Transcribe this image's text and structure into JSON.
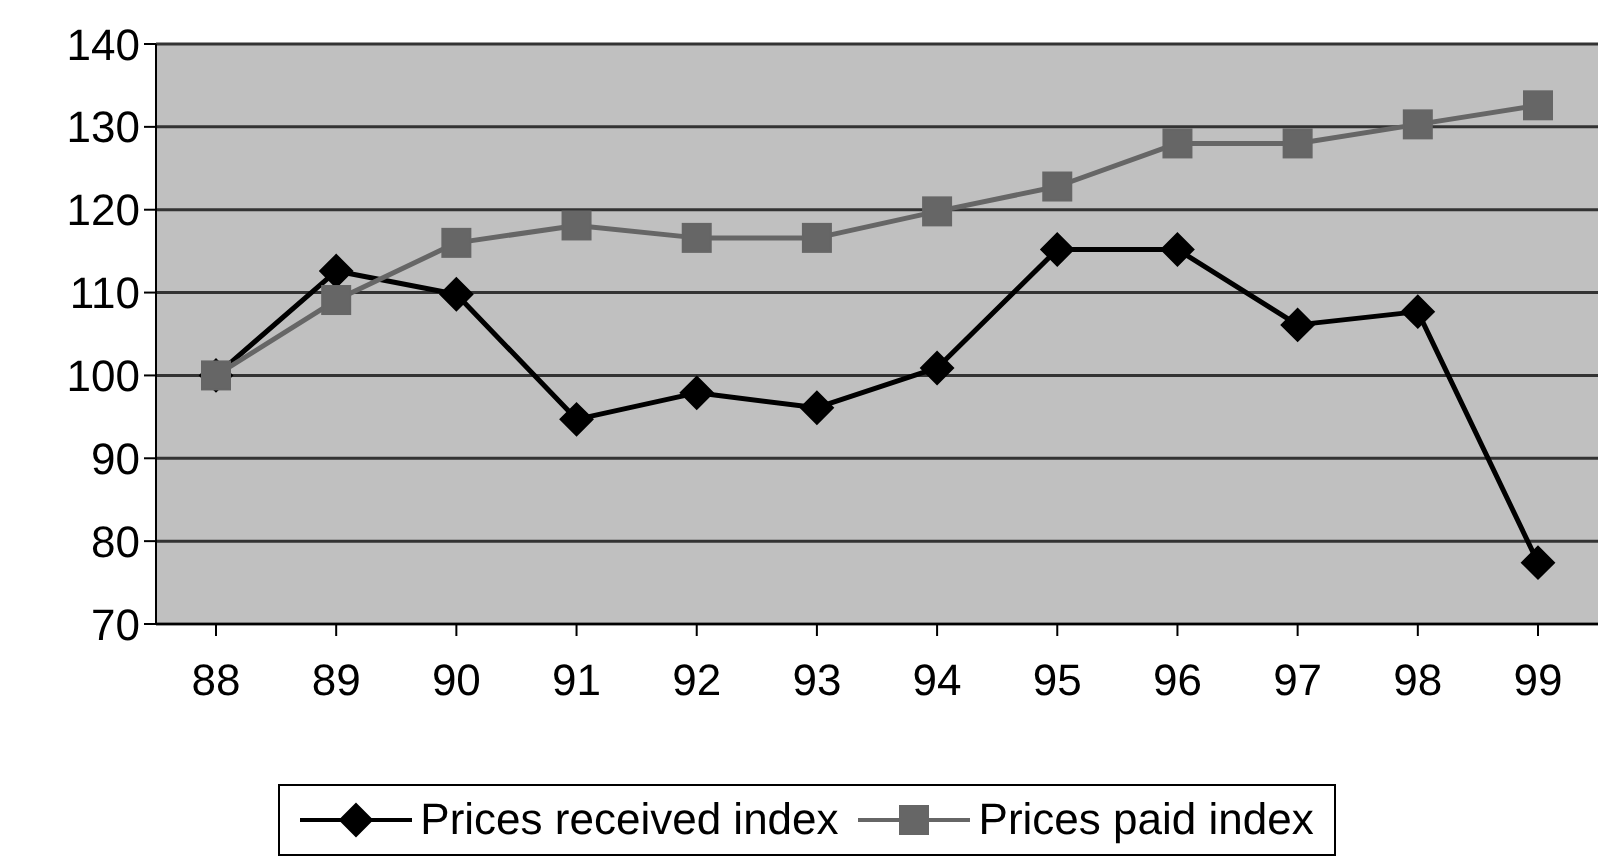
{
  "chart_data": {
    "type": "line",
    "categories": [
      "88",
      "89",
      "90",
      "91",
      "92",
      "93",
      "94",
      "95",
      "96",
      "97",
      "98",
      "99"
    ],
    "series": [
      {
        "name": "Prices received index",
        "color": "#000000",
        "marker": "diamond",
        "values": [
          100,
          112.6,
          109.8,
          94.7,
          97.9,
          96.1,
          100.9,
          115.2,
          115.2,
          106.1,
          107.7,
          77.4
        ]
      },
      {
        "name": "Prices paid index",
        "color": "#666666",
        "marker": "square",
        "values": [
          100,
          109.1,
          116,
          118.1,
          116.6,
          116.6,
          119.8,
          122.8,
          128,
          128,
          130.3,
          132.6
        ]
      }
    ],
    "ylim": [
      70,
      140
    ],
    "yticks": [
      70,
      80,
      90,
      100,
      110,
      120,
      130,
      140
    ],
    "grid": "y",
    "legend": "bottom",
    "line_style": "solid"
  }
}
